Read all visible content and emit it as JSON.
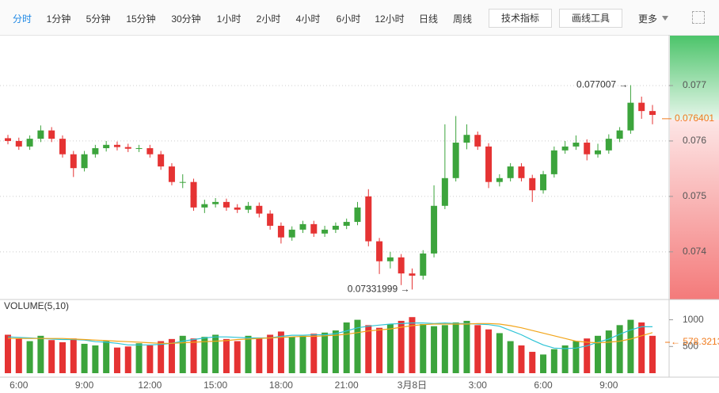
{
  "toolbar": {
    "tabs": [
      "分时",
      "1分钟",
      "5分钟",
      "15分钟",
      "30分钟",
      "1小时",
      "2小时",
      "4小时",
      "6小时",
      "12小时",
      "日线",
      "周线"
    ],
    "buttons": [
      "技术指标",
      "画线工具"
    ],
    "more": "更多"
  },
  "chart_data": [
    {
      "type": "candlestick",
      "up_color": "#3ca43c",
      "down_color": "#e53333",
      "grid": true,
      "categories": [
        null,
        "6:00",
        null,
        null,
        null,
        null,
        null,
        "9:00",
        null,
        null,
        null,
        null,
        null,
        "12:00",
        null,
        null,
        null,
        null,
        null,
        "15:00",
        null,
        null,
        null,
        null,
        null,
        "18:00",
        null,
        null,
        null,
        null,
        null,
        "21:00",
        null,
        null,
        null,
        null,
        null,
        "3月8日",
        null,
        null,
        null,
        null,
        null,
        "3:00",
        null,
        null,
        null,
        null,
        null,
        "6:00",
        null,
        null,
        null,
        null,
        null,
        "9:00",
        null,
        null,
        null,
        null
      ],
      "open": [
        0.07605,
        0.076,
        0.0759,
        0.07604,
        0.07619,
        0.07604,
        0.07576,
        0.07551,
        0.07576,
        0.07587,
        0.07593,
        0.07589,
        0.07586,
        0.07587,
        0.07576,
        0.07554,
        0.07526,
        0.07526,
        0.0748,
        0.07486,
        0.0749,
        0.0748,
        0.07476,
        0.07483,
        0.07469,
        0.07447,
        0.07426,
        0.0744,
        0.0745,
        0.07433,
        0.0744,
        0.07447,
        0.07454,
        0.075,
        0.07419,
        0.07383,
        0.0739,
        0.07361,
        0.07357,
        0.07397,
        0.07483,
        0.07533,
        0.07597,
        0.07611,
        0.0759,
        0.07526,
        0.07533,
        0.07554,
        0.07533,
        0.07511,
        0.0754,
        0.07583,
        0.0759,
        0.07597,
        0.07576,
        0.07583,
        0.07604,
        0.07619,
        0.07669,
        0.07654
      ],
      "high": [
        0.07611,
        0.07606,
        0.0761,
        0.07628,
        0.07625,
        0.0761,
        0.07582,
        0.07582,
        0.07593,
        0.076,
        0.07599,
        0.07595,
        0.07593,
        0.07593,
        0.07582,
        0.0756,
        0.0754,
        0.07532,
        0.07494,
        0.07497,
        0.07496,
        0.07486,
        0.0749,
        0.07489,
        0.07475,
        0.07453,
        0.07446,
        0.07456,
        0.07456,
        0.07447,
        0.07453,
        0.0746,
        0.0749,
        0.07513,
        0.07425,
        0.074,
        0.07396,
        0.0737,
        0.07403,
        0.0752,
        0.0763,
        0.07645,
        0.0763,
        0.07617,
        0.07596,
        0.0754,
        0.0756,
        0.0756,
        0.07539,
        0.07546,
        0.0759,
        0.076,
        0.0761,
        0.07603,
        0.07595,
        0.07612,
        0.07625,
        0.077007,
        0.0768,
        0.07665
      ],
      "low": [
        0.07594,
        0.07584,
        0.07584,
        0.07598,
        0.07598,
        0.0757,
        0.07535,
        0.07545,
        0.0757,
        0.07581,
        0.07583,
        0.0758,
        0.0758,
        0.0757,
        0.07548,
        0.0752,
        0.07515,
        0.07474,
        0.0747,
        0.0748,
        0.07474,
        0.0747,
        0.0747,
        0.07462,
        0.0744,
        0.07415,
        0.0742,
        0.07434,
        0.07427,
        0.07427,
        0.07434,
        0.07441,
        0.07448,
        0.0741,
        0.0736,
        0.0737,
        0.0734,
        0.07331999,
        0.0735,
        0.0739,
        0.07477,
        0.07527,
        0.07585,
        0.07584,
        0.07515,
        0.07518,
        0.07527,
        0.07527,
        0.0749,
        0.07505,
        0.07534,
        0.07577,
        0.07584,
        0.07565,
        0.0757,
        0.07577,
        0.07598,
        0.07613,
        0.0764,
        0.0763
      ],
      "close": [
        0.076,
        0.0759,
        0.07604,
        0.07619,
        0.07604,
        0.07576,
        0.07551,
        0.07576,
        0.07587,
        0.07593,
        0.07589,
        0.07586,
        0.07587,
        0.07576,
        0.07554,
        0.07526,
        0.07526,
        0.0748,
        0.07486,
        0.0749,
        0.0748,
        0.07476,
        0.07483,
        0.07469,
        0.07447,
        0.07426,
        0.0744,
        0.0745,
        0.07433,
        0.0744,
        0.07447,
        0.07454,
        0.0748,
        0.07419,
        0.07383,
        0.0739,
        0.07361,
        0.07357,
        0.07397,
        0.07483,
        0.07533,
        0.07597,
        0.07611,
        0.0759,
        0.07526,
        0.07533,
        0.07554,
        0.07533,
        0.07511,
        0.0754,
        0.07583,
        0.0759,
        0.07597,
        0.07576,
        0.07583,
        0.07604,
        0.07619,
        0.07669,
        0.07654,
        0.07647
      ],
      "ylim": [
        0.07314,
        0.0779
      ],
      "yticks": [
        0.074,
        0.075,
        0.076,
        0.077
      ],
      "last_price": 0.076401,
      "last_color": "#f07b1d",
      "annotations": [
        {
          "value": 0.077007,
          "label": "0.077007 →",
          "index": 57
        },
        {
          "value": 0.07331999,
          "label": "0.07331999 →",
          "index": 37
        }
      ]
    },
    {
      "type": "volume",
      "title": "VOLUME(5,10)",
      "values": [
        720,
        650,
        600,
        700,
        620,
        580,
        650,
        550,
        520,
        600,
        480,
        500,
        560,
        520,
        600,
        640,
        700,
        650,
        680,
        720,
        640,
        600,
        700,
        650,
        720,
        780,
        680,
        700,
        740,
        760,
        800,
        950,
        1000,
        900,
        850,
        920,
        980,
        1050,
        920,
        880,
        900,
        950,
        980,
        900,
        820,
        750,
        600,
        520,
        400,
        350,
        450,
        520,
        600,
        650,
        700,
        800,
        900,
        1000,
        950,
        700
      ],
      "lines": [
        {
          "color": "#2ec4d6",
          "values": [
            680,
            670,
            660,
            650,
            640,
            630,
            630,
            620,
            590,
            580,
            560,
            530,
            530,
            530,
            540,
            560,
            600,
            630,
            660,
            680,
            680,
            670,
            660,
            660,
            660,
            690,
            710,
            710,
            720,
            720,
            740,
            790,
            850,
            880,
            900,
            920,
            930,
            940,
            940,
            930,
            940,
            930,
            930,
            920,
            910,
            880,
            800,
            720,
            620,
            530,
            470,
            460,
            470,
            510,
            580,
            640,
            730,
            810,
            870,
            870
          ]
        },
        {
          "color": "#f2a51a",
          "values": [
            650,
            650,
            650,
            650,
            650,
            650,
            640,
            630,
            620,
            610,
            600,
            590,
            580,
            570,
            560,
            560,
            570,
            580,
            590,
            600,
            610,
            630,
            640,
            650,
            660,
            670,
            680,
            690,
            690,
            700,
            710,
            730,
            760,
            790,
            810,
            830,
            860,
            890,
            910,
            920,
            920,
            920,
            920,
            930,
            930,
            920,
            890,
            850,
            800,
            750,
            700,
            650,
            600,
            580,
            570,
            580,
            600,
            640,
            700,
            760
          ]
        }
      ],
      "ylim": [
        0,
        1350
      ],
      "yticks": [
        500,
        1000
      ],
      "last": {
        "value": 578.3213,
        "label": "← 578.3213"
      },
      "last_color": "#f07b1d"
    }
  ]
}
